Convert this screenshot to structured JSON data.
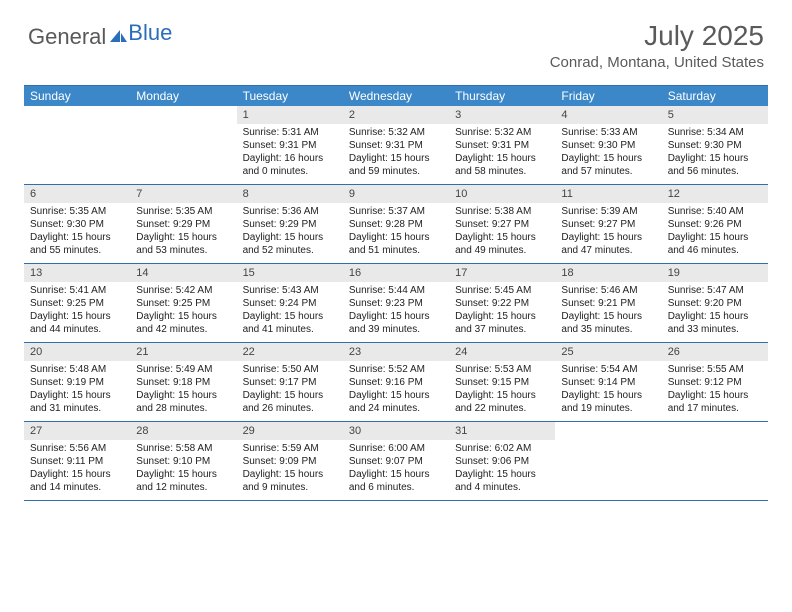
{
  "brand": {
    "part1": "General",
    "part2": "Blue"
  },
  "title": "July 2025",
  "location": "Conrad, Montana, United States",
  "colors": {
    "header_bg": "#3b87c8",
    "border": "#2f6fae",
    "daynum_bg": "#e9e9e9",
    "text_gray": "#5a5a5a",
    "brand_blue": "#2a6ebb"
  },
  "day_headers": [
    "Sunday",
    "Monday",
    "Tuesday",
    "Wednesday",
    "Thursday",
    "Friday",
    "Saturday"
  ],
  "first_weekday": 2,
  "days": [
    {
      "n": 1,
      "sunrise": "5:31 AM",
      "sunset": "9:31 PM",
      "daylight": "16 hours and 0 minutes."
    },
    {
      "n": 2,
      "sunrise": "5:32 AM",
      "sunset": "9:31 PM",
      "daylight": "15 hours and 59 minutes."
    },
    {
      "n": 3,
      "sunrise": "5:32 AM",
      "sunset": "9:31 PM",
      "daylight": "15 hours and 58 minutes."
    },
    {
      "n": 4,
      "sunrise": "5:33 AM",
      "sunset": "9:30 PM",
      "daylight": "15 hours and 57 minutes."
    },
    {
      "n": 5,
      "sunrise": "5:34 AM",
      "sunset": "9:30 PM",
      "daylight": "15 hours and 56 minutes."
    },
    {
      "n": 6,
      "sunrise": "5:35 AM",
      "sunset": "9:30 PM",
      "daylight": "15 hours and 55 minutes."
    },
    {
      "n": 7,
      "sunrise": "5:35 AM",
      "sunset": "9:29 PM",
      "daylight": "15 hours and 53 minutes."
    },
    {
      "n": 8,
      "sunrise": "5:36 AM",
      "sunset": "9:29 PM",
      "daylight": "15 hours and 52 minutes."
    },
    {
      "n": 9,
      "sunrise": "5:37 AM",
      "sunset": "9:28 PM",
      "daylight": "15 hours and 51 minutes."
    },
    {
      "n": 10,
      "sunrise": "5:38 AM",
      "sunset": "9:27 PM",
      "daylight": "15 hours and 49 minutes."
    },
    {
      "n": 11,
      "sunrise": "5:39 AM",
      "sunset": "9:27 PM",
      "daylight": "15 hours and 47 minutes."
    },
    {
      "n": 12,
      "sunrise": "5:40 AM",
      "sunset": "9:26 PM",
      "daylight": "15 hours and 46 minutes."
    },
    {
      "n": 13,
      "sunrise": "5:41 AM",
      "sunset": "9:25 PM",
      "daylight": "15 hours and 44 minutes."
    },
    {
      "n": 14,
      "sunrise": "5:42 AM",
      "sunset": "9:25 PM",
      "daylight": "15 hours and 42 minutes."
    },
    {
      "n": 15,
      "sunrise": "5:43 AM",
      "sunset": "9:24 PM",
      "daylight": "15 hours and 41 minutes."
    },
    {
      "n": 16,
      "sunrise": "5:44 AM",
      "sunset": "9:23 PM",
      "daylight": "15 hours and 39 minutes."
    },
    {
      "n": 17,
      "sunrise": "5:45 AM",
      "sunset": "9:22 PM",
      "daylight": "15 hours and 37 minutes."
    },
    {
      "n": 18,
      "sunrise": "5:46 AM",
      "sunset": "9:21 PM",
      "daylight": "15 hours and 35 minutes."
    },
    {
      "n": 19,
      "sunrise": "5:47 AM",
      "sunset": "9:20 PM",
      "daylight": "15 hours and 33 minutes."
    },
    {
      "n": 20,
      "sunrise": "5:48 AM",
      "sunset": "9:19 PM",
      "daylight": "15 hours and 31 minutes."
    },
    {
      "n": 21,
      "sunrise": "5:49 AM",
      "sunset": "9:18 PM",
      "daylight": "15 hours and 28 minutes."
    },
    {
      "n": 22,
      "sunrise": "5:50 AM",
      "sunset": "9:17 PM",
      "daylight": "15 hours and 26 minutes."
    },
    {
      "n": 23,
      "sunrise": "5:52 AM",
      "sunset": "9:16 PM",
      "daylight": "15 hours and 24 minutes."
    },
    {
      "n": 24,
      "sunrise": "5:53 AM",
      "sunset": "9:15 PM",
      "daylight": "15 hours and 22 minutes."
    },
    {
      "n": 25,
      "sunrise": "5:54 AM",
      "sunset": "9:14 PM",
      "daylight": "15 hours and 19 minutes."
    },
    {
      "n": 26,
      "sunrise": "5:55 AM",
      "sunset": "9:12 PM",
      "daylight": "15 hours and 17 minutes."
    },
    {
      "n": 27,
      "sunrise": "5:56 AM",
      "sunset": "9:11 PM",
      "daylight": "15 hours and 14 minutes."
    },
    {
      "n": 28,
      "sunrise": "5:58 AM",
      "sunset": "9:10 PM",
      "daylight": "15 hours and 12 minutes."
    },
    {
      "n": 29,
      "sunrise": "5:59 AM",
      "sunset": "9:09 PM",
      "daylight": "15 hours and 9 minutes."
    },
    {
      "n": 30,
      "sunrise": "6:00 AM",
      "sunset": "9:07 PM",
      "daylight": "15 hours and 6 minutes."
    },
    {
      "n": 31,
      "sunrise": "6:02 AM",
      "sunset": "9:06 PM",
      "daylight": "15 hours and 4 minutes."
    }
  ],
  "labels": {
    "sunrise": "Sunrise:",
    "sunset": "Sunset:",
    "daylight": "Daylight:"
  }
}
